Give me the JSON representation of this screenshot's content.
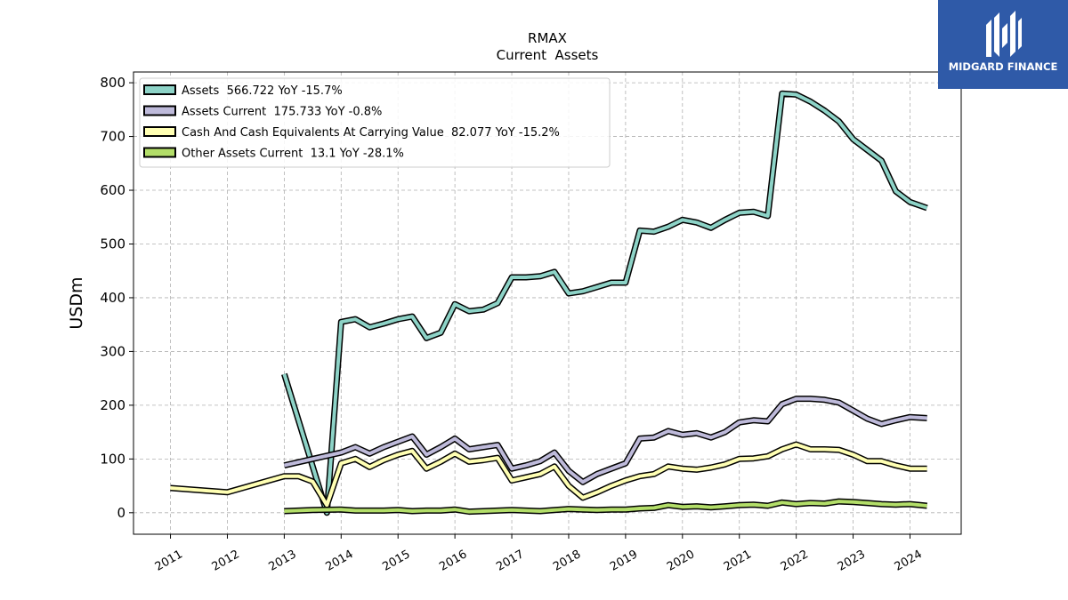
{
  "logo": {
    "text": "MIDGARD FINANCE",
    "bg_color": "#2f5aa8"
  },
  "chart_data": {
    "type": "line",
    "title": "RMAX",
    "subtitle": "Current  Assets",
    "ylabel": "USDm",
    "xlabel": "",
    "ylim": [
      -40,
      820
    ],
    "xlim": [
      2010.35,
      2024.9
    ],
    "yticks": [
      0,
      100,
      200,
      300,
      400,
      500,
      600,
      700,
      800
    ],
    "xticks": [
      2011,
      2012,
      2013,
      2014,
      2015,
      2016,
      2017,
      2018,
      2019,
      2020,
      2021,
      2022,
      2023,
      2024
    ],
    "grid": true,
    "legend_position": "top-left",
    "series": [
      {
        "name": "Assets  566.722 YoY -15.7%",
        "color": "#8dd3c7",
        "points": [
          [
            2013.0,
            258
          ],
          [
            2013.75,
            0
          ],
          [
            2014.0,
            355
          ],
          [
            2014.25,
            360
          ],
          [
            2014.5,
            345
          ],
          [
            2014.75,
            352
          ],
          [
            2015.0,
            360
          ],
          [
            2015.25,
            365
          ],
          [
            2015.5,
            325
          ],
          [
            2015.75,
            335
          ],
          [
            2016.0,
            388
          ],
          [
            2016.25,
            375
          ],
          [
            2016.5,
            378
          ],
          [
            2016.75,
            390
          ],
          [
            2017.0,
            438
          ],
          [
            2017.25,
            438
          ],
          [
            2017.5,
            440
          ],
          [
            2017.75,
            448
          ],
          [
            2018.0,
            408
          ],
          [
            2018.25,
            412
          ],
          [
            2018.5,
            420
          ],
          [
            2018.75,
            428
          ],
          [
            2019.0,
            428
          ],
          [
            2019.25,
            525
          ],
          [
            2019.5,
            523
          ],
          [
            2019.75,
            532
          ],
          [
            2020.0,
            545
          ],
          [
            2020.25,
            540
          ],
          [
            2020.5,
            530
          ],
          [
            2020.75,
            545
          ],
          [
            2021.0,
            558
          ],
          [
            2021.25,
            560
          ],
          [
            2021.5,
            552
          ],
          [
            2021.75,
            780
          ],
          [
            2022.0,
            778
          ],
          [
            2022.25,
            765
          ],
          [
            2022.5,
            748
          ],
          [
            2022.75,
            728
          ],
          [
            2023.0,
            695
          ],
          [
            2023.25,
            675
          ],
          [
            2023.5,
            655
          ],
          [
            2023.75,
            598
          ],
          [
            2024.0,
            578
          ],
          [
            2024.3,
            567
          ]
        ]
      },
      {
        "name": "Assets Current  175.733 YoY -0.8%",
        "color": "#bebada",
        "points": [
          [
            2013.0,
            88
          ],
          [
            2013.5,
            100
          ],
          [
            2014.0,
            112
          ],
          [
            2014.25,
            122
          ],
          [
            2014.5,
            110
          ],
          [
            2014.75,
            122
          ],
          [
            2015.0,
            132
          ],
          [
            2015.25,
            142
          ],
          [
            2015.5,
            108
          ],
          [
            2015.75,
            122
          ],
          [
            2016.0,
            138
          ],
          [
            2016.25,
            118
          ],
          [
            2016.5,
            122
          ],
          [
            2016.75,
            126
          ],
          [
            2017.0,
            82
          ],
          [
            2017.25,
            88
          ],
          [
            2017.5,
            96
          ],
          [
            2017.75,
            112
          ],
          [
            2018.0,
            78
          ],
          [
            2018.25,
            57
          ],
          [
            2018.5,
            72
          ],
          [
            2018.75,
            82
          ],
          [
            2019.0,
            92
          ],
          [
            2019.25,
            138
          ],
          [
            2019.5,
            140
          ],
          [
            2019.75,
            152
          ],
          [
            2020.0,
            145
          ],
          [
            2020.25,
            148
          ],
          [
            2020.5,
            140
          ],
          [
            2020.75,
            150
          ],
          [
            2021.0,
            168
          ],
          [
            2021.25,
            172
          ],
          [
            2021.5,
            170
          ],
          [
            2021.75,
            202
          ],
          [
            2022.0,
            212
          ],
          [
            2022.25,
            212
          ],
          [
            2022.5,
            210
          ],
          [
            2022.75,
            205
          ],
          [
            2023.0,
            190
          ],
          [
            2023.25,
            175
          ],
          [
            2023.5,
            165
          ],
          [
            2023.75,
            172
          ],
          [
            2024.0,
            178
          ],
          [
            2024.3,
            176
          ]
        ]
      },
      {
        "name": "Cash And Cash Equivalents At Carrying Value  82.077 YoY -15.2%",
        "color": "#ffffb3",
        "points": [
          [
            2011.0,
            46
          ],
          [
            2012.0,
            38
          ],
          [
            2013.0,
            68
          ],
          [
            2013.25,
            68
          ],
          [
            2013.5,
            58
          ],
          [
            2013.75,
            14
          ],
          [
            2014.0,
            92
          ],
          [
            2014.25,
            100
          ],
          [
            2014.5,
            85
          ],
          [
            2014.75,
            98
          ],
          [
            2015.0,
            108
          ],
          [
            2015.25,
            115
          ],
          [
            2015.5,
            82
          ],
          [
            2015.75,
            95
          ],
          [
            2016.0,
            110
          ],
          [
            2016.25,
            95
          ],
          [
            2016.5,
            98
          ],
          [
            2016.75,
            102
          ],
          [
            2017.0,
            60
          ],
          [
            2017.25,
            66
          ],
          [
            2017.5,
            72
          ],
          [
            2017.75,
            86
          ],
          [
            2018.0,
            50
          ],
          [
            2018.25,
            28
          ],
          [
            2018.5,
            38
          ],
          [
            2018.75,
            50
          ],
          [
            2019.0,
            60
          ],
          [
            2019.25,
            68
          ],
          [
            2019.5,
            72
          ],
          [
            2019.75,
            86
          ],
          [
            2020.0,
            82
          ],
          [
            2020.25,
            80
          ],
          [
            2020.5,
            84
          ],
          [
            2020.75,
            90
          ],
          [
            2021.0,
            100
          ],
          [
            2021.25,
            101
          ],
          [
            2021.5,
            105
          ],
          [
            2021.75,
            118
          ],
          [
            2022.0,
            127
          ],
          [
            2022.25,
            118
          ],
          [
            2022.5,
            118
          ],
          [
            2022.75,
            117
          ],
          [
            2023.0,
            108
          ],
          [
            2023.25,
            96
          ],
          [
            2023.5,
            96
          ],
          [
            2023.75,
            88
          ],
          [
            2024.0,
            82
          ],
          [
            2024.3,
            82
          ]
        ]
      },
      {
        "name": "Other Assets Current  13.1 YoY -28.1%",
        "color": "#b3de69",
        "points": [
          [
            2013.0,
            3
          ],
          [
            2013.5,
            5
          ],
          [
            2014.0,
            6
          ],
          [
            2014.25,
            4
          ],
          [
            2014.5,
            4
          ],
          [
            2014.75,
            4
          ],
          [
            2015.0,
            5
          ],
          [
            2015.25,
            3
          ],
          [
            2015.5,
            4
          ],
          [
            2015.75,
            4
          ],
          [
            2016.0,
            6
          ],
          [
            2016.25,
            2
          ],
          [
            2016.5,
            3
          ],
          [
            2016.75,
            4
          ],
          [
            2017.0,
            5
          ],
          [
            2017.25,
            4
          ],
          [
            2017.5,
            3
          ],
          [
            2017.75,
            5
          ],
          [
            2018.0,
            7
          ],
          [
            2018.25,
            6
          ],
          [
            2018.5,
            5
          ],
          [
            2018.75,
            6
          ],
          [
            2019.0,
            6
          ],
          [
            2019.25,
            8
          ],
          [
            2019.5,
            9
          ],
          [
            2019.75,
            14
          ],
          [
            2020.0,
            11
          ],
          [
            2020.25,
            12
          ],
          [
            2020.5,
            10
          ],
          [
            2020.75,
            12
          ],
          [
            2021.0,
            14
          ],
          [
            2021.25,
            15
          ],
          [
            2021.5,
            13
          ],
          [
            2021.75,
            19
          ],
          [
            2022.0,
            16
          ],
          [
            2022.25,
            18
          ],
          [
            2022.5,
            17
          ],
          [
            2022.75,
            21
          ],
          [
            2023.0,
            20
          ],
          [
            2023.25,
            18
          ],
          [
            2023.5,
            16
          ],
          [
            2023.75,
            15
          ],
          [
            2024.0,
            16
          ],
          [
            2024.3,
            13
          ]
        ]
      }
    ]
  }
}
